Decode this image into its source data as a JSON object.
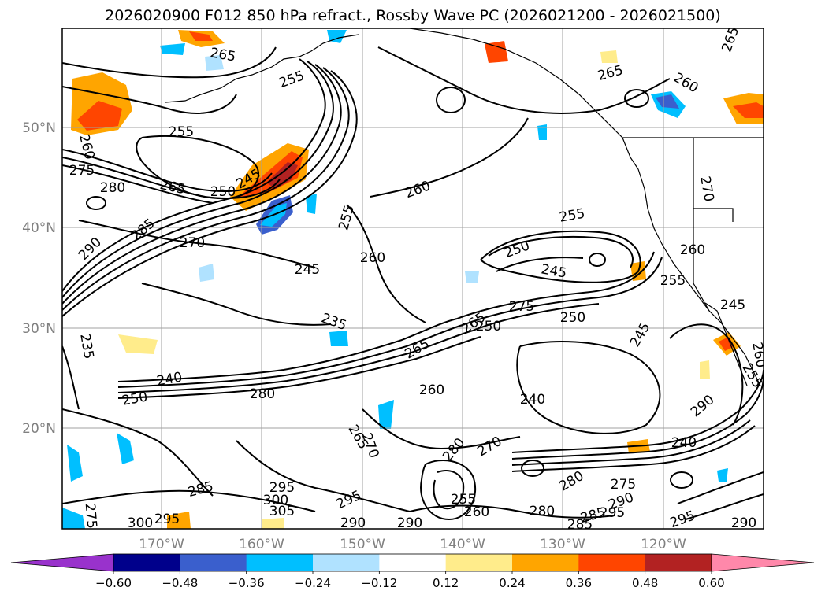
{
  "title": "2026020900 F012 850 hPa refract., Rossby Wave PC (2026021200 - 2026021500)",
  "latitude_labels": [
    "50°N",
    "40°N",
    "30°N",
    "20°N"
  ],
  "longitude_labels": [
    "170°W",
    "160°W",
    "150°W",
    "140°W",
    "130°W",
    "120°W"
  ],
  "contour_labels": [
    {
      "id": "c255a",
      "text": "255"
    },
    {
      "id": "c265a",
      "text": "265"
    },
    {
      "id": "c255b",
      "text": "255"
    },
    {
      "id": "c260a",
      "text": "260"
    },
    {
      "id": "c275a",
      "text": "275"
    },
    {
      "id": "c280a",
      "text": "280"
    },
    {
      "id": "c265b",
      "text": "265"
    },
    {
      "id": "c250a",
      "text": "250"
    },
    {
      "id": "c245a",
      "text": "245"
    },
    {
      "id": "c285a",
      "text": "285"
    },
    {
      "id": "c290a",
      "text": "290"
    },
    {
      "id": "c270a",
      "text": "270"
    },
    {
      "id": "c245b",
      "text": "245"
    },
    {
      "id": "c255c",
      "text": "255"
    },
    {
      "id": "c260b",
      "text": "260"
    },
    {
      "id": "c260c",
      "text": "260"
    },
    {
      "id": "c235a",
      "text": "235"
    },
    {
      "id": "c235b",
      "text": "235"
    },
    {
      "id": "c240a",
      "text": "240"
    },
    {
      "id": "c250b",
      "text": "250"
    },
    {
      "id": "c280b",
      "text": "280"
    },
    {
      "id": "c265c",
      "text": "265"
    },
    {
      "id": "c260d",
      "text": "260"
    },
    {
      "id": "c255d",
      "text": "255"
    },
    {
      "id": "c250c",
      "text": "250"
    },
    {
      "id": "c245c",
      "text": "245"
    },
    {
      "id": "c275b",
      "text": "275"
    },
    {
      "id": "c265d",
      "text": "265"
    },
    {
      "id": "c250d",
      "text": "250"
    },
    {
      "id": "c260e",
      "text": "260"
    },
    {
      "id": "c255e",
      "text": "255"
    },
    {
      "id": "c245d",
      "text": "245"
    },
    {
      "id": "c270b",
      "text": "270"
    },
    {
      "id": "c265e",
      "text": "265"
    },
    {
      "id": "c260f",
      "text": "260"
    },
    {
      "id": "c265f",
      "text": "265"
    },
    {
      "id": "c240b",
      "text": "240"
    },
    {
      "id": "c245e",
      "text": "245"
    },
    {
      "id": "c260g",
      "text": "260"
    },
    {
      "id": "c255f",
      "text": "255"
    },
    {
      "id": "c240c",
      "text": "240"
    },
    {
      "id": "c280c",
      "text": "280"
    },
    {
      "id": "c275c",
      "text": "275"
    },
    {
      "id": "c290b",
      "text": "290"
    },
    {
      "id": "c285b",
      "text": "285"
    },
    {
      "id": "c280d",
      "text": "280"
    },
    {
      "id": "c295a",
      "text": "295"
    },
    {
      "id": "c290c",
      "text": "290"
    },
    {
      "id": "c295b",
      "text": "295"
    },
    {
      "id": "c280e",
      "text": "280"
    },
    {
      "id": "c270c",
      "text": "270"
    },
    {
      "id": "c255g",
      "text": "255"
    },
    {
      "id": "c260h",
      "text": "260"
    },
    {
      "id": "c265g",
      "text": "265"
    },
    {
      "id": "c275d",
      "text": "275"
    },
    {
      "id": "c285c",
      "text": "285"
    },
    {
      "id": "c295c",
      "text": "295"
    },
    {
      "id": "c300a",
      "text": "300"
    },
    {
      "id": "c305a",
      "text": "305"
    },
    {
      "id": "c295d",
      "text": "295"
    },
    {
      "id": "c290d",
      "text": "290"
    },
    {
      "id": "c300b",
      "text": "300"
    },
    {
      "id": "c295e",
      "text": "295"
    },
    {
      "id": "c290e",
      "text": "290"
    },
    {
      "id": "c270d",
      "text": "270"
    },
    {
      "id": "c250e",
      "text": "250"
    },
    {
      "id": "c290f",
      "text": "290"
    },
    {
      "id": "c285d",
      "text": "285"
    }
  ],
  "colorbar": {
    "tick_labels": [
      "−0.60",
      "−0.48",
      "−0.36",
      "−0.24",
      "−0.12",
      "0.12",
      "0.24",
      "0.36",
      "0.48",
      "0.60"
    ],
    "colors": [
      "#9932CC",
      "#00008B",
      "#3A5FCD",
      "#00BFFF",
      "#B0E2FF",
      "#FFFFFF",
      "#FFEC8B",
      "#FFA500",
      "#FF4500",
      "#B22222",
      "#FF88AA"
    ]
  },
  "colors": {
    "contour": "#000000",
    "grid": "#a0a0a0",
    "tick_label": "#808080"
  }
}
